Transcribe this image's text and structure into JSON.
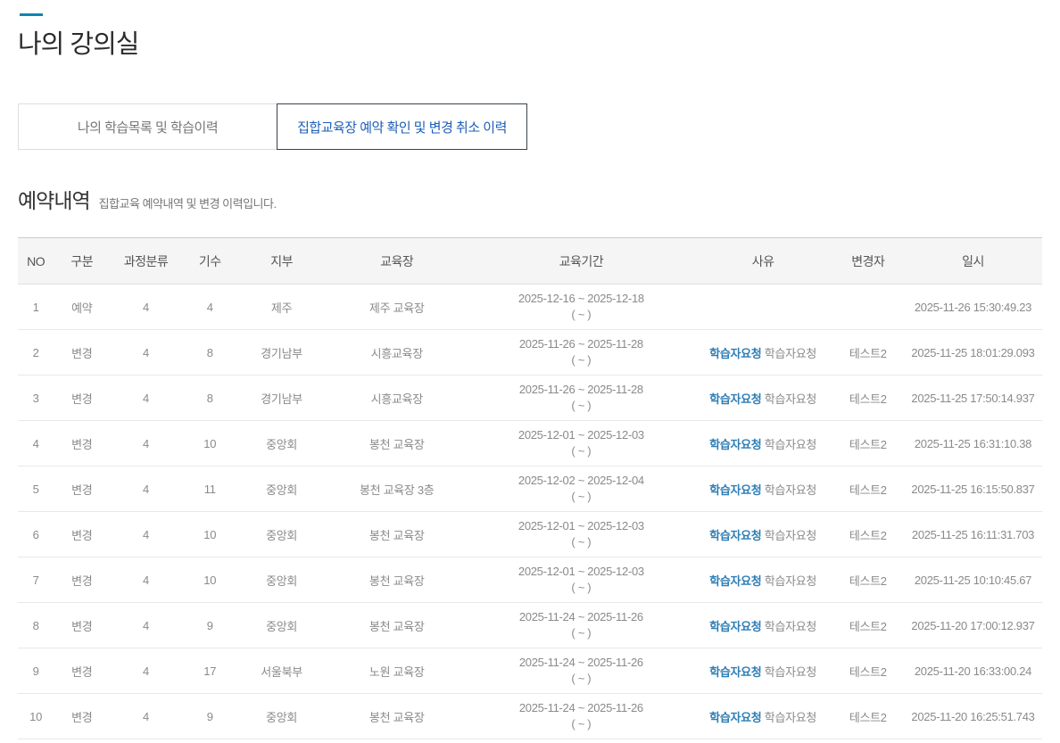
{
  "page": {
    "title": "나의 강의실"
  },
  "tabs": [
    {
      "label": "나의 학습목록 및 학습이력",
      "active": false
    },
    {
      "label": "집합교육장 예약 확인 및 변경 취소 이력",
      "active": true
    }
  ],
  "section": {
    "title": "예약내역",
    "subtitle": "집합교육 예약내역 및 변경 이력입니다."
  },
  "table": {
    "columns": [
      "NO",
      "구분",
      "과정분류",
      "기수",
      "지부",
      "교육장",
      "교육기간",
      "사유",
      "변경자",
      "일시"
    ],
    "rows": [
      {
        "no": "1",
        "type": "예약",
        "course_class": "4",
        "term": "4",
        "branch": "제주",
        "center": "제주 교육장",
        "period_line1": "2025-12-16 ~ 2025-12-18",
        "period_line2": "( ~ )",
        "reason_strong": "",
        "reason_text": "",
        "modifier": "",
        "datetime": "2025-11-26 15:30:49.23"
      },
      {
        "no": "2",
        "type": "변경",
        "course_class": "4",
        "term": "8",
        "branch": "경기남부",
        "center": "시흥교육장",
        "period_line1": "2025-11-26 ~ 2025-11-28",
        "period_line2": "( ~ )",
        "reason_strong": "학습자요청",
        "reason_text": "학습자요청",
        "modifier": "테스트2",
        "datetime": "2025-11-25 18:01:29.093"
      },
      {
        "no": "3",
        "type": "변경",
        "course_class": "4",
        "term": "8",
        "branch": "경기남부",
        "center": "시흥교육장",
        "period_line1": "2025-11-26 ~ 2025-11-28",
        "period_line2": "( ~ )",
        "reason_strong": "학습자요청",
        "reason_text": "학습자요청",
        "modifier": "테스트2",
        "datetime": "2025-11-25 17:50:14.937"
      },
      {
        "no": "4",
        "type": "변경",
        "course_class": "4",
        "term": "10",
        "branch": "중앙회",
        "center": "봉천 교육장",
        "period_line1": "2025-12-01 ~ 2025-12-03",
        "period_line2": "( ~ )",
        "reason_strong": "학습자요청",
        "reason_text": "학습자요청",
        "modifier": "테스트2",
        "datetime": "2025-11-25 16:31:10.38"
      },
      {
        "no": "5",
        "type": "변경",
        "course_class": "4",
        "term": "11",
        "branch": "중앙회",
        "center": "봉천 교육장 3층",
        "period_line1": "2025-12-02 ~ 2025-12-04",
        "period_line2": "( ~ )",
        "reason_strong": "학습자요청",
        "reason_text": "학습자요청",
        "modifier": "테스트2",
        "datetime": "2025-11-25 16:15:50.837"
      },
      {
        "no": "6",
        "type": "변경",
        "course_class": "4",
        "term": "10",
        "branch": "중앙회",
        "center": "봉천 교육장",
        "period_line1": "2025-12-01 ~ 2025-12-03",
        "period_line2": "( ~ )",
        "reason_strong": "학습자요청",
        "reason_text": "학습자요청",
        "modifier": "테스트2",
        "datetime": "2025-11-25 16:11:31.703"
      },
      {
        "no": "7",
        "type": "변경",
        "course_class": "4",
        "term": "10",
        "branch": "중앙회",
        "center": "봉천 교육장",
        "period_line1": "2025-12-01 ~ 2025-12-03",
        "period_line2": "( ~ )",
        "reason_strong": "학습자요청",
        "reason_text": "학습자요청",
        "modifier": "테스트2",
        "datetime": "2025-11-25 10:10:45.67"
      },
      {
        "no": "8",
        "type": "변경",
        "course_class": "4",
        "term": "9",
        "branch": "중앙회",
        "center": "봉천 교육장",
        "period_line1": "2025-11-24 ~ 2025-11-26",
        "period_line2": "( ~ )",
        "reason_strong": "학습자요청",
        "reason_text": "학습자요청",
        "modifier": "테스트2",
        "datetime": "2025-11-20 17:00:12.937"
      },
      {
        "no": "9",
        "type": "변경",
        "course_class": "4",
        "term": "17",
        "branch": "서울북부",
        "center": "노원 교육장",
        "period_line1": "2025-11-24 ~ 2025-11-26",
        "period_line2": "( ~ )",
        "reason_strong": "학습자요청",
        "reason_text": "학습자요청",
        "modifier": "테스트2",
        "datetime": "2025-11-20 16:33:00.24"
      },
      {
        "no": "10",
        "type": "변경",
        "course_class": "4",
        "term": "9",
        "branch": "중앙회",
        "center": "봉천 교육장",
        "period_line1": "2025-11-24 ~ 2025-11-26",
        "period_line2": "( ~ )",
        "reason_strong": "학습자요청",
        "reason_text": "학습자요청",
        "modifier": "테스트2",
        "datetime": "2025-11-20 16:25:51.743"
      }
    ]
  },
  "colors": {
    "accent_bar": "#0c87af",
    "tab_active_text": "#1c5eb8",
    "tab_active_border": "#39434f",
    "reason_highlight": "#2e7eb5",
    "table_header_bg": "#f5f5f5"
  }
}
